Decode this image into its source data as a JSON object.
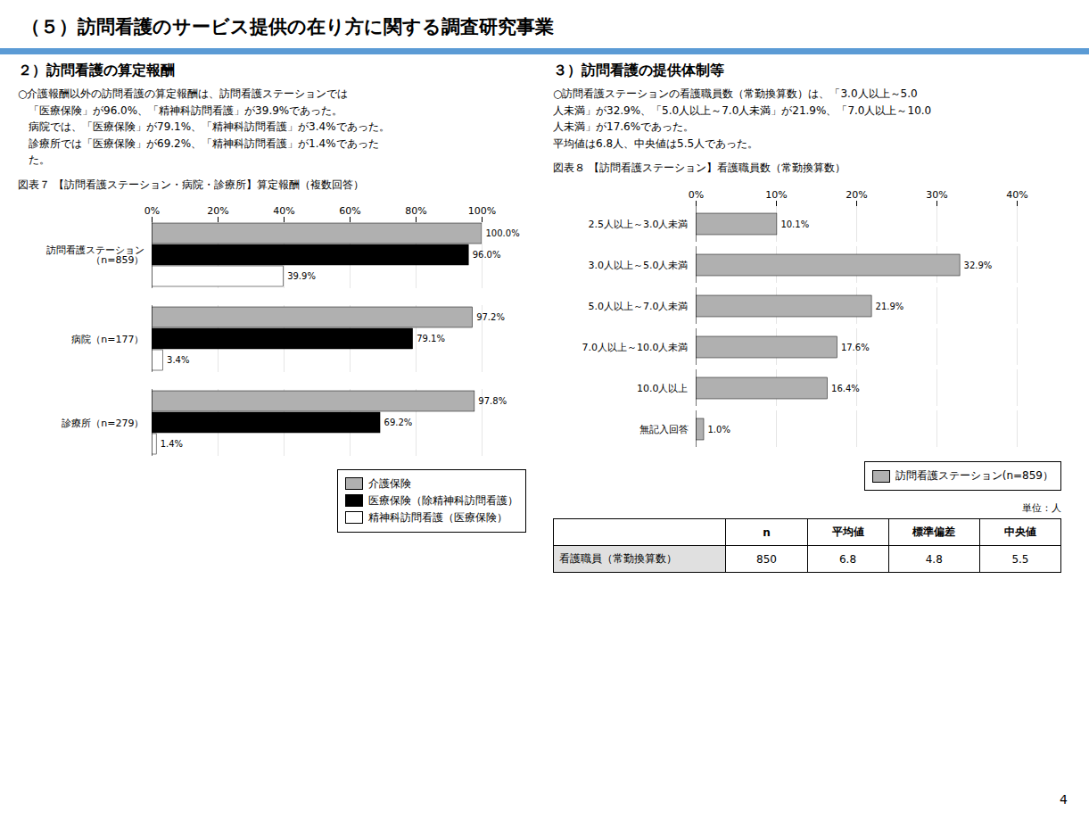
{
  "title": "（５）訪問看護のサービス提供の在り方に関する調査研究事業",
  "color": "#5b9bd5",
  "annotations": [
    "4"
  ],
  "chart_data": [
    {
      "type": "bar",
      "orientation": "horizontal",
      "subtitle": "２）訪問看護の算定報酬",
      "annotations": [
        "○介護報酬以外の訪問看護の算定報酬は、訪問看護ステーションでは",
        "　「医療保険」が96.0%、「精神科訪問看護」が39.9%であった。",
        "　病院では、「医療保険」が79.1%、「精神科訪問看護」が3.4%であった。",
        "　診療所では「医療保険」が69.2%、「精神科訪問看護」が1.4%であった",
        "　た。"
      ],
      "title": "図表７ 【訪問看護ステーション・病院・診療所】算定報酬（複数回答）",
      "categories": [
        "訪問看護ステーション\n（n=859）",
        "病院（n=177）",
        "診療所（n=279）"
      ],
      "series": [
        {
          "name": "介護保険",
          "color": "#b0b0b0",
          "values": [
            100.0,
            97.2,
            97.8
          ],
          "value_labels": [
            "100.0%",
            "97.2%",
            "97.8%"
          ]
        },
        {
          "name": "医療保険（除精神科訪問看護）",
          "color": "#000000",
          "values": [
            96.0,
            79.1,
            69.2
          ],
          "value_labels": [
            "96.0%",
            "79.1%",
            "69.2%"
          ]
        },
        {
          "name": "精神科訪問看護（医療保険）",
          "color": "#ffffff",
          "values": [
            39.9,
            3.4,
            1.4
          ],
          "value_labels": [
            "39.9%",
            "3.4%",
            "1.4%"
          ]
        }
      ],
      "xlim": [
        0,
        100
      ],
      "xticks": [
        {
          "value": 0,
          "label": "0%"
        },
        {
          "value": 20,
          "label": "20%"
        },
        {
          "value": 40,
          "label": "40%"
        },
        {
          "value": 60,
          "label": "60%"
        },
        {
          "value": 80,
          "label": "80%"
        },
        {
          "value": 100,
          "label": "100%"
        }
      ],
      "grid": true,
      "legend": "lower right",
      "data_labels": true
    },
    {
      "type": "bar",
      "orientation": "horizontal",
      "subtitle": "３）訪問看護の提供体制等",
      "annotations": [
        "○訪問看護ステーションの看護職員数（常勤換算数）は、「3.0人以上～5.0",
        "人未満」が32.9%、「5.0人以上～7.0人未満」が21.9%、「7.0人以上～10.0",
        "人未満」が17.6%であった。",
        "平均値は6.8人、中央値は5.5人であった。"
      ],
      "title": "図表８ 【訪問看護ステーション】看護職員数（常勤換算数）",
      "categories": [
        "2.5人以上～3.0人未満",
        "3.0人以上～5.0人未満",
        "5.0人以上～7.0人未満",
        "7.0人以上～10.0人未満",
        "10.0人以上",
        "無記入回答"
      ],
      "series": [
        {
          "name": "訪問看護ステーション(n=859）",
          "color": "#b0b0b0",
          "values": [
            10.1,
            32.9,
            21.9,
            17.6,
            16.4,
            1.0
          ],
          "value_labels": [
            "10.1%",
            "32.9%",
            "21.9%",
            "17.6%",
            "16.4%",
            "1.0%"
          ]
        }
      ],
      "xlim": [
        0,
        40
      ],
      "xticks": [
        {
          "value": 0,
          "label": "0%"
        },
        {
          "value": 10,
          "label": "10%"
        },
        {
          "value": 20,
          "label": "20%"
        },
        {
          "value": 30,
          "label": "30%"
        },
        {
          "value": 40,
          "label": "40%"
        }
      ],
      "grid": true,
      "legend": "lower right",
      "data_labels": true
    },
    {
      "type": "table",
      "annotations": [
        "単位：人"
      ],
      "columns": [
        null,
        "n",
        "平均値",
        "標準偏差",
        "中央値"
      ],
      "rows": [
        [
          "看護職員（常勤換算数）",
          850,
          6.8,
          4.8,
          5.5
        ]
      ]
    }
  ]
}
